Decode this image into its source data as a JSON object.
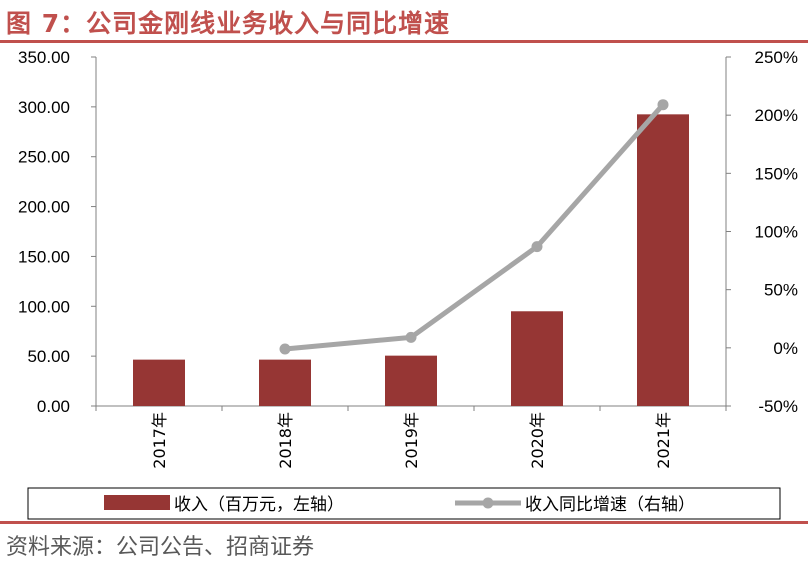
{
  "header": {
    "title": "图 7：公司金刚线业务收入与同比增速"
  },
  "footer": {
    "source": "资料来源：公司公告、招商证券"
  },
  "chart_data": {
    "type": "bar",
    "categories": [
      "2017年",
      "2018年",
      "2019年",
      "2020年",
      "2021年"
    ],
    "series": [
      {
        "name": "收入（百万元，左轴）",
        "type": "bar",
        "axis": "left",
        "color": "#963634",
        "values": [
          46.5,
          46.5,
          50.5,
          95.0,
          292.5
        ]
      },
      {
        "name": "收入同比增速（右轴）",
        "type": "line",
        "axis": "right",
        "color": "#a6a6a6",
        "values": [
          null,
          -0.01,
          0.09,
          0.87,
          2.09
        ]
      }
    ],
    "y_left": {
      "lim": [
        0,
        350
      ],
      "ticks": [
        0,
        50,
        100,
        150,
        200,
        250,
        300,
        350
      ],
      "tick_labels": [
        "0.00",
        "50.00",
        "100.00",
        "150.00",
        "200.00",
        "250.00",
        "300.00",
        "350.00"
      ]
    },
    "y_right": {
      "lim": [
        -0.5,
        2.5
      ],
      "ticks": [
        -0.5,
        0,
        0.5,
        1.0,
        1.5,
        2.0,
        2.5
      ],
      "tick_labels": [
        "-50%",
        "0%",
        "50%",
        "100%",
        "150%",
        "200%",
        "250%"
      ]
    },
    "grid": false,
    "legend_position": "bottom"
  }
}
